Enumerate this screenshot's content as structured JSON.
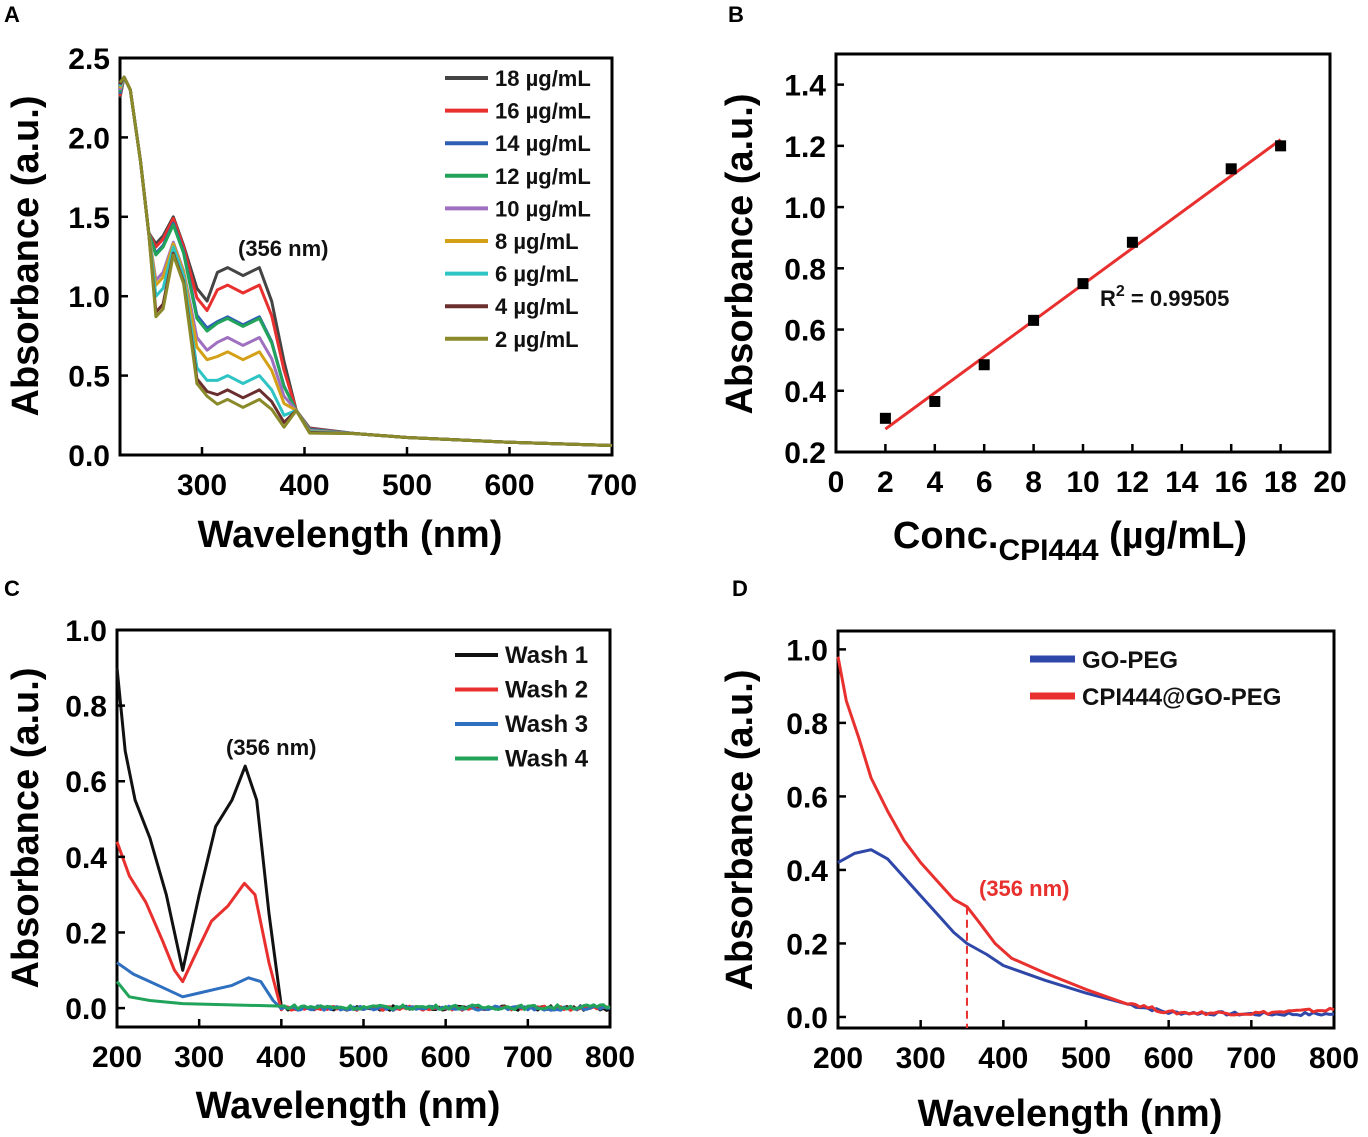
{
  "chart_data": [
    {
      "panel": "A",
      "type": "line",
      "xlabel": "Wavelength (nm)",
      "ylabel": "Absorbance (a.u.)",
      "xlim": [
        220,
        700
      ],
      "ylim": [
        0.0,
        2.5
      ],
      "xticks": [
        "300",
        "400",
        "500",
        "600",
        "700"
      ],
      "yticks": [
        "0.0",
        "0.5",
        "1.0",
        "1.5",
        "2.0",
        "2.5"
      ],
      "annotation": "(356 nm)",
      "legend_position": "top-right",
      "series": [
        {
          "name": "18 µg/mL",
          "color": "#444444",
          "peak1": 1.5,
          "plateau": 1.18,
          "valley1": 1.33,
          "valley2": 0.97
        },
        {
          "name": "16 µg/mL",
          "color": "#e8302e",
          "peak1": 1.49,
          "plateau": 1.07,
          "valley1": 1.31,
          "valley2": 0.91
        },
        {
          "name": "14 µg/mL",
          "color": "#2f5fb3",
          "peak1": 1.46,
          "plateau": 0.87,
          "valley1": 1.27,
          "valley2": 0.8
        },
        {
          "name": "12 µg/mL",
          "color": "#22a35a",
          "peak1": 1.45,
          "plateau": 0.86,
          "valley1": 1.26,
          "valley2": 0.78
        },
        {
          "name": "10 µg/mL",
          "color": "#a070c0",
          "peak1": 1.34,
          "plateau": 0.74,
          "valley1": 1.1,
          "valley2": 0.66
        },
        {
          "name": "8 µg/mL",
          "color": "#d4a017",
          "peak1": 1.33,
          "plateau": 0.65,
          "valley1": 1.07,
          "valley2": 0.6
        },
        {
          "name": "6 µg/mL",
          "color": "#2ec4c4",
          "peak1": 1.31,
          "plateau": 0.5,
          "valley1": 1.0,
          "valley2": 0.47
        },
        {
          "name": "4 µg/mL",
          "color": "#6b2e2e",
          "peak1": 1.27,
          "plateau": 0.41,
          "valley1": 0.9,
          "valley2": 0.4
        },
        {
          "name": "2 µg/mL",
          "color": "#8a8a2a",
          "peak1": 1.26,
          "plateau": 0.35,
          "valley1": 0.87,
          "valley2": 0.37
        }
      ]
    },
    {
      "panel": "B",
      "type": "scatter",
      "xlabel_main": "Conc.",
      "xlabel_sub": "CPI444",
      "xlabel_unit": " (µg/mL)",
      "ylabel": "Absorbance (a.u.)",
      "xlim": [
        0,
        20
      ],
      "ylim": [
        0.2,
        1.5
      ],
      "xticks": [
        "0",
        "2",
        "4",
        "6",
        "8",
        "10",
        "12",
        "14",
        "16",
        "18",
        "20"
      ],
      "yticks": [
        "0.2",
        "0.4",
        "0.6",
        "0.8",
        "1.0",
        "1.2",
        "1.4"
      ],
      "x": [
        2,
        4,
        6,
        8,
        10,
        12,
        16,
        18
      ],
      "y": [
        0.31,
        0.365,
        0.485,
        0.63,
        0.75,
        0.885,
        1.125,
        1.2
      ],
      "fit": {
        "x": [
          2,
          18
        ],
        "y": [
          0.275,
          1.22
        ],
        "color": "#e8302e"
      },
      "r2_label": "R",
      "r2_sup": "2",
      "r2_value": " = 0.99505"
    },
    {
      "panel": "C",
      "type": "line",
      "xlabel": "Wavelength (nm)",
      "ylabel": "Absorbance (a.u.)",
      "xlim": [
        200,
        800
      ],
      "ylim": [
        -0.05,
        1.0
      ],
      "xticks": [
        "200",
        "300",
        "400",
        "500",
        "600",
        "700",
        "800"
      ],
      "yticks": [
        "0.0",
        "0.2",
        "0.4",
        "0.6",
        "0.8",
        "1.0"
      ],
      "annotation": "(356 nm)",
      "legend_position": "top-right",
      "series": [
        {
          "name": "Wash 1",
          "color": "#111111",
          "x": [
            200,
            210,
            222,
            240,
            260,
            280,
            300,
            320,
            340,
            356,
            370,
            385,
            400,
            800
          ],
          "y": [
            0.9,
            0.68,
            0.55,
            0.45,
            0.3,
            0.1,
            0.3,
            0.48,
            0.55,
            0.64,
            0.55,
            0.25,
            0.0,
            0.0
          ]
        },
        {
          "name": "Wash 2",
          "color": "#e8302e",
          "x": [
            200,
            215,
            235,
            255,
            270,
            280,
            295,
            315,
            335,
            355,
            368,
            385,
            400,
            800
          ],
          "y": [
            0.44,
            0.35,
            0.28,
            0.18,
            0.1,
            0.07,
            0.14,
            0.23,
            0.27,
            0.33,
            0.3,
            0.12,
            0.0,
            0.0
          ]
        },
        {
          "name": "Wash 3",
          "color": "#2f6fc0",
          "x": [
            200,
            220,
            240,
            260,
            280,
            300,
            320,
            340,
            360,
            375,
            390,
            400,
            800
          ],
          "y": [
            0.12,
            0.09,
            0.07,
            0.05,
            0.03,
            0.04,
            0.05,
            0.06,
            0.08,
            0.07,
            0.02,
            0.0,
            0.0
          ]
        },
        {
          "name": "Wash 4",
          "color": "#22a35a",
          "x": [
            200,
            215,
            240,
            280,
            350,
            400,
            500,
            600,
            700,
            800
          ],
          "y": [
            0.07,
            0.03,
            0.02,
            0.012,
            0.008,
            0.004,
            0.002,
            0.003,
            0.002,
            0.004
          ]
        }
      ]
    },
    {
      "panel": "D",
      "type": "line",
      "xlabel": "Wavelength (nm)",
      "ylabel": "Absorbance (a.u.)",
      "xlim": [
        200,
        800
      ],
      "ylim": [
        -0.03,
        1.05
      ],
      "xticks": [
        "200",
        "300",
        "400",
        "500",
        "600",
        "700",
        "800"
      ],
      "yticks": [
        "0.0",
        "0.2",
        "0.4",
        "0.6",
        "0.8",
        "1.0"
      ],
      "annotation": "(356 nm)",
      "annotation_x": 356,
      "legend_position": "top-right",
      "series": [
        {
          "name": "GO-PEG",
          "color": "#2e47a8",
          "x": [
            200,
            220,
            240,
            260,
            280,
            300,
            320,
            340,
            356,
            380,
            400,
            450,
            500,
            550,
            600,
            700,
            800
          ],
          "y": [
            0.42,
            0.445,
            0.455,
            0.43,
            0.38,
            0.33,
            0.28,
            0.23,
            0.2,
            0.17,
            0.14,
            0.1,
            0.065,
            0.035,
            0.012,
            0.008,
            0.008
          ]
        },
        {
          "name": "CPI444@GO-PEG",
          "color": "#e8302e",
          "x": [
            200,
            210,
            225,
            240,
            260,
            280,
            300,
            320,
            340,
            356,
            370,
            390,
            410,
            450,
            500,
            550,
            600,
            700,
            800
          ],
          "y": [
            0.98,
            0.86,
            0.76,
            0.65,
            0.56,
            0.48,
            0.42,
            0.37,
            0.32,
            0.3,
            0.26,
            0.2,
            0.16,
            0.12,
            0.075,
            0.04,
            0.012,
            0.01,
            0.02
          ]
        }
      ]
    }
  ]
}
